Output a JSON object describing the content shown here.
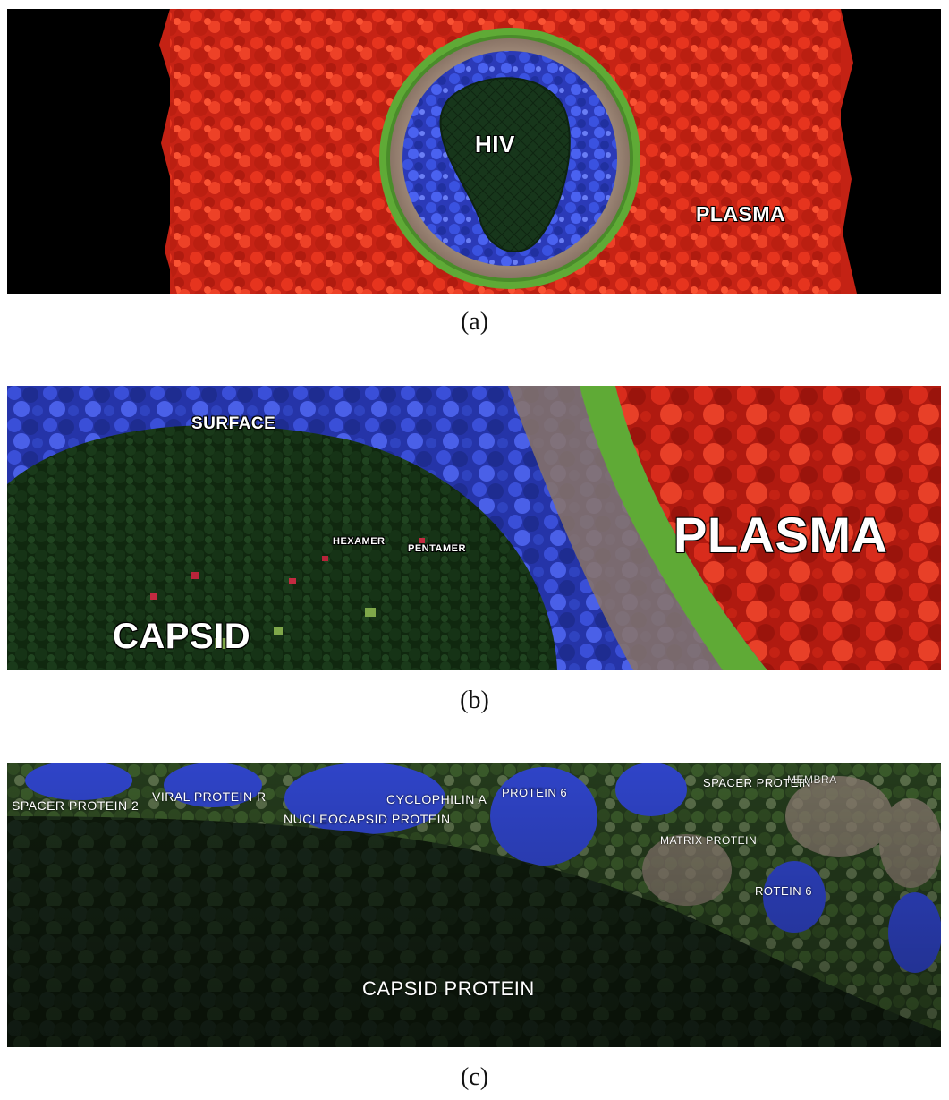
{
  "panels": {
    "a": {
      "caption": "(a)",
      "labels": {
        "hiv": "HIV",
        "plasma": "PLASMA"
      }
    },
    "b": {
      "caption": "(b)",
      "labels": {
        "surface": "SURFACE",
        "hexamer": "HEXAMER",
        "pentamer": "PENTAMER",
        "plasma": "PLASMA",
        "capsid": "CAPSID"
      }
    },
    "c": {
      "caption": "(c)",
      "labels": {
        "spacer_protein_2": "SPACER PROTEIN 2",
        "viral_protein_r": "VIRAL PROTEIN R",
        "cyclophilin_a": "CYCLOPHILIN A",
        "protein_6_top": "PROTEIN 6",
        "nucleocapsid_protein": "NUCLEOCAPSID PROTEIN",
        "spacer_protein_overlap": "SPACER PROTEIN",
        "membrane_overlap": "MEMBRA",
        "matrix_protein": "MATRIX PROTEIN",
        "protein_6_partial": "ROTEIN 6",
        "capsid_protein": "CAPSID PROTEIN"
      }
    }
  },
  "colors": {
    "plasma_red": "#e0301e",
    "plasma_dark": "#a8180e",
    "membrane_green": "#5faa36",
    "matrix_tan": "#9a8474",
    "matrix_blue": "#3548d6",
    "capsid_green": "#17361b",
    "background_black": "#000000"
  }
}
